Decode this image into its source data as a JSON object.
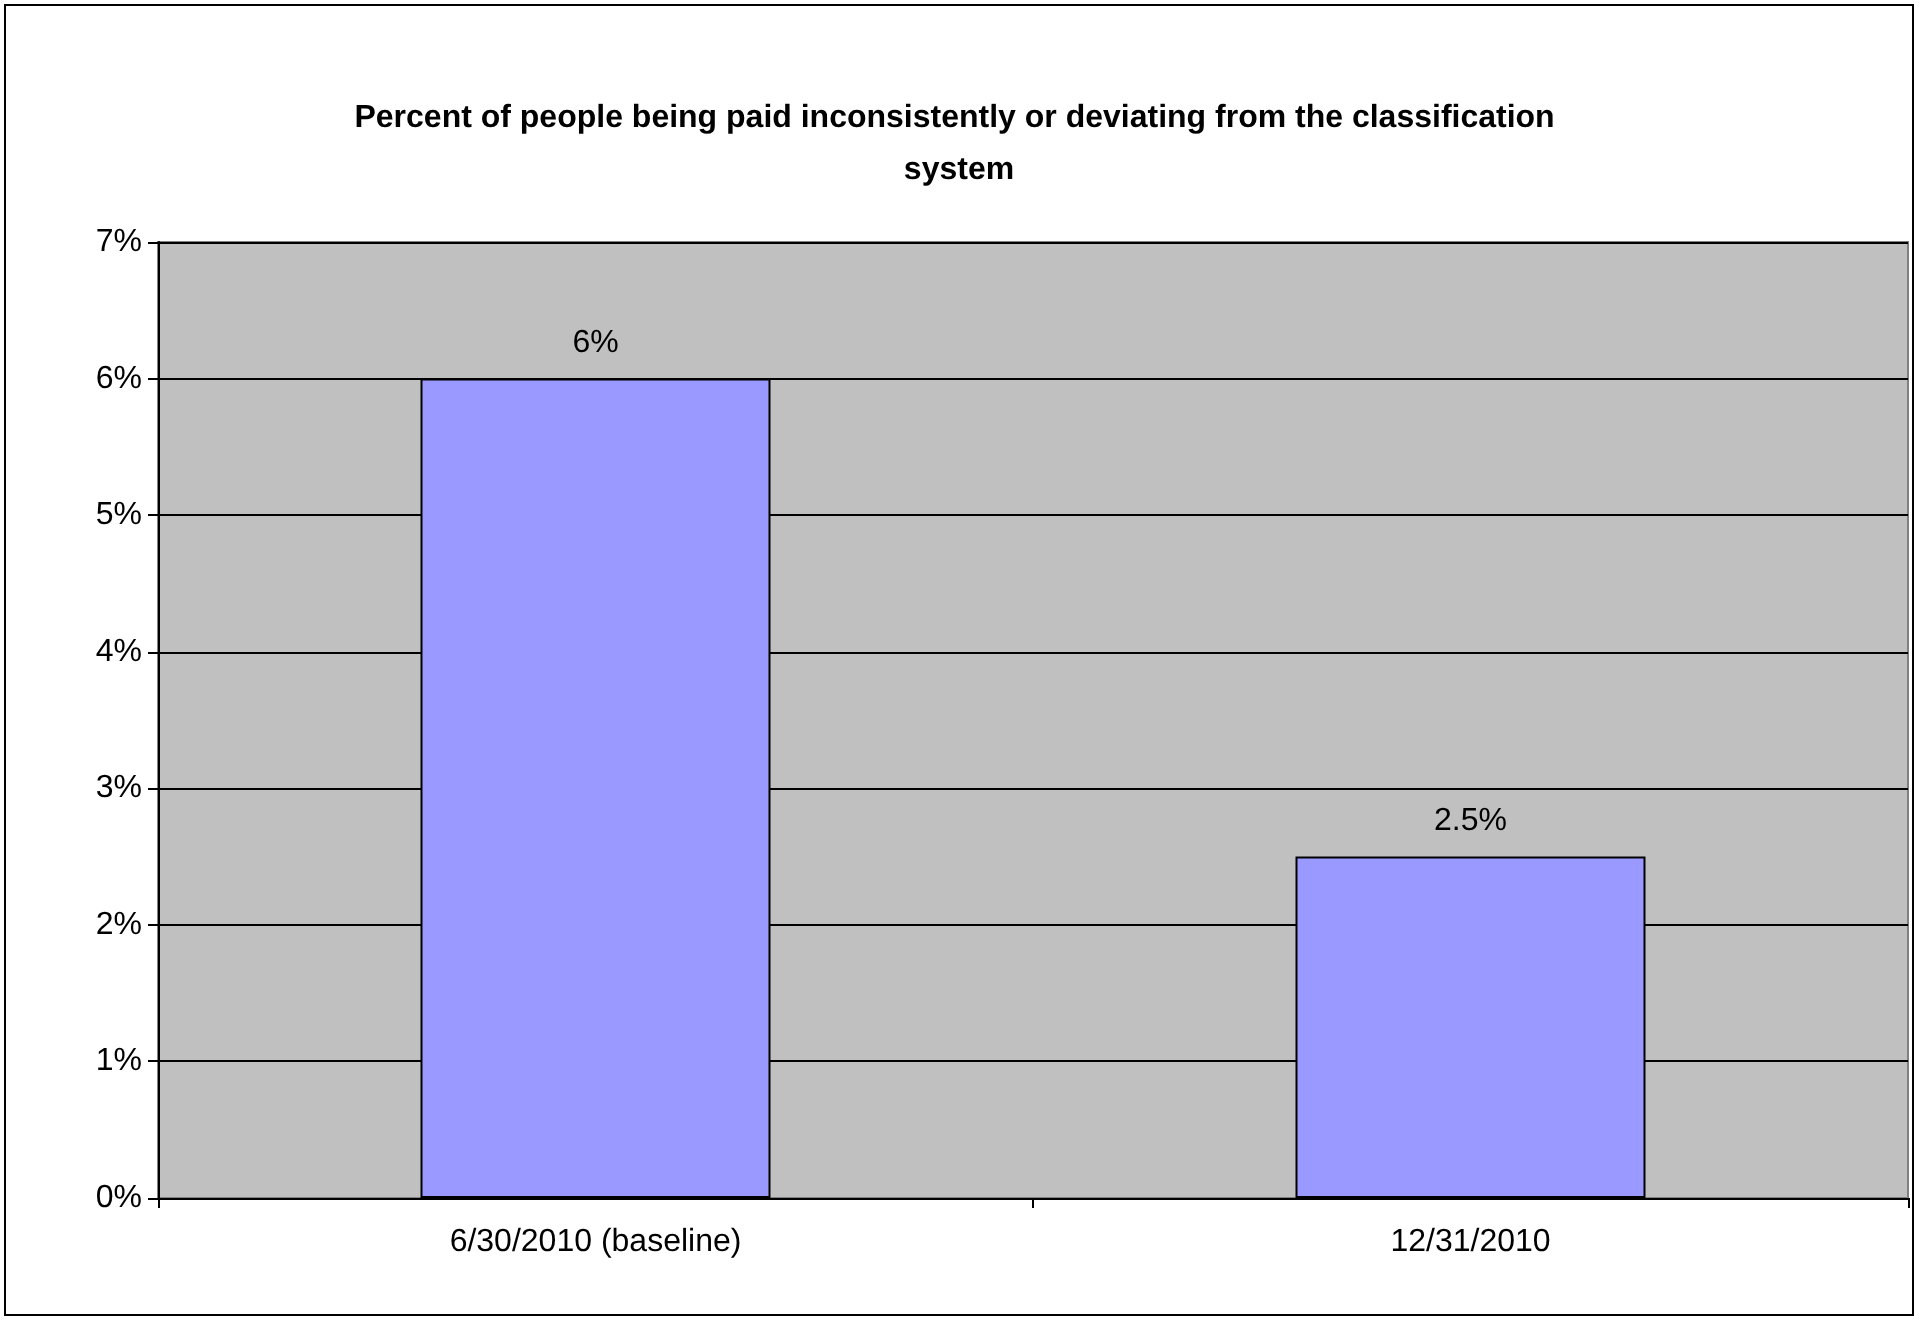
{
  "chart_data": {
    "type": "bar",
    "title": "Percent of people being paid inconsistently or deviating from the classification system",
    "categories": [
      "6/30/2010 (baseline)",
      "12/31/2010"
    ],
    "values": [
      6,
      2.5
    ],
    "color": "#9999ff",
    "value_labels": [
      "6%",
      "2.5%"
    ],
    "ylim": [
      0,
      7
    ],
    "yticks": [
      {
        "value": 0,
        "label": "0%"
      },
      {
        "value": 1,
        "label": "1%"
      },
      {
        "value": 2,
        "label": "2%"
      },
      {
        "value": 3,
        "label": "3%"
      },
      {
        "value": 4,
        "label": "4%"
      },
      {
        "value": 5,
        "label": "5%"
      },
      {
        "value": 6,
        "label": "6%"
      },
      {
        "value": 7,
        "label": "7%"
      }
    ],
    "grid": "y"
  }
}
